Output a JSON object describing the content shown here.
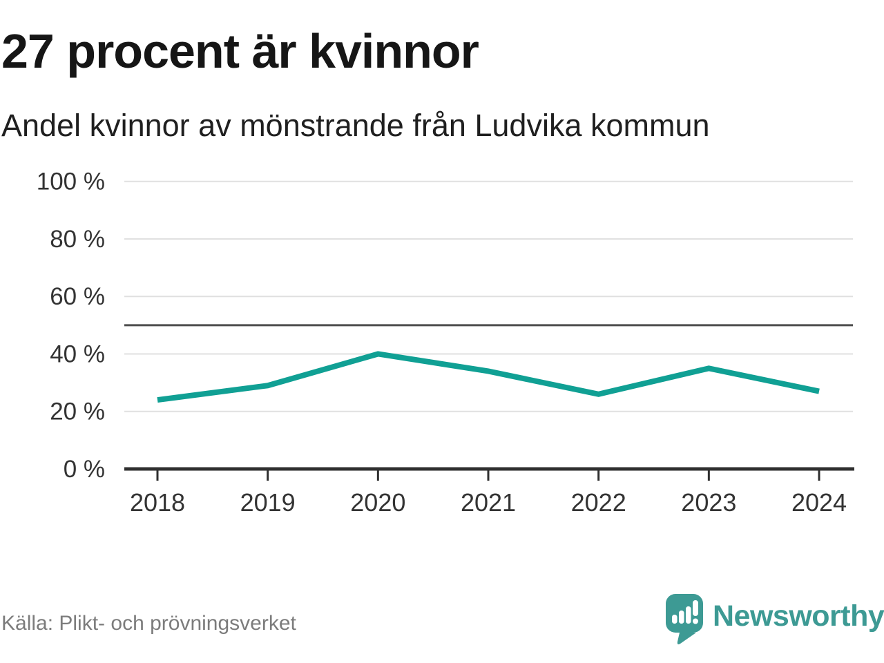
{
  "title": "27 procent är kvinnor",
  "subtitle": "Andel kvinnor av mönstrande från Ludvika kommun",
  "source": "Källa: Plikt- och prövningsverket",
  "logo": {
    "text": "Newsworthy",
    "icon": "newsworthy-speech-bubble-barchart-icon"
  },
  "colors": {
    "line": "#10a094",
    "grid": "#e0e0e0",
    "reference_line": "#4d4d4d",
    "axis": "#2f2f2f",
    "tick_label": "#333333",
    "logo": "#3d9a94"
  },
  "chart_data": {
    "type": "line",
    "categories": [
      "2018",
      "2019",
      "2020",
      "2021",
      "2022",
      "2023",
      "2024"
    ],
    "values": [
      24,
      29,
      40,
      34,
      26,
      35,
      27
    ],
    "unit": "%",
    "title": "27 procent är kvinnor",
    "subtitle": "Andel kvinnor av mönstrande från Ludvika kommun",
    "xlabel": "",
    "ylabel": "",
    "ylim": [
      0,
      100
    ],
    "yticks": [
      0,
      20,
      40,
      60,
      80,
      100
    ],
    "ytick_suffix": " %",
    "reference_line": 50,
    "grid": true,
    "legend": false
  }
}
